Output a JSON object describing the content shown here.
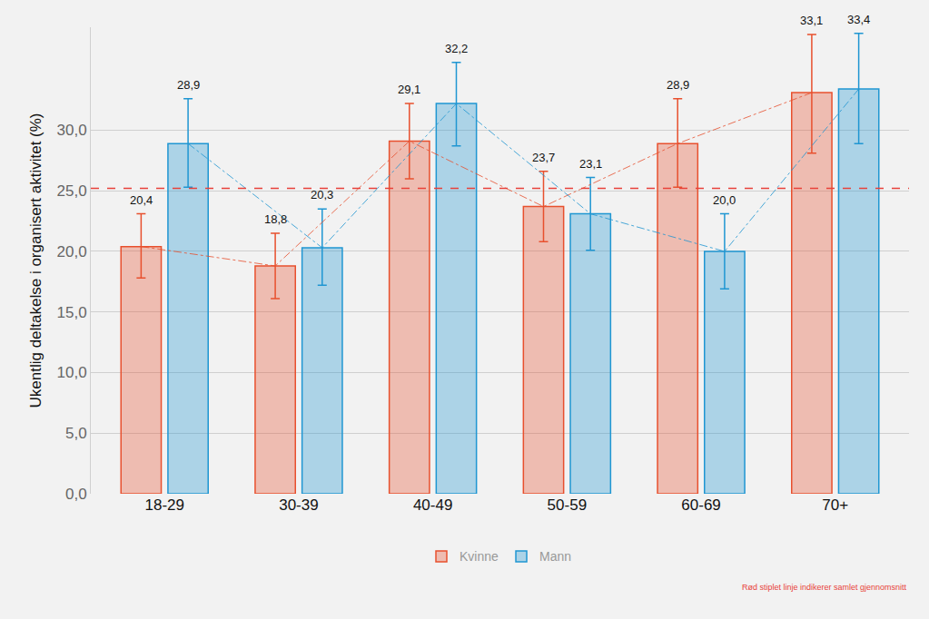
{
  "chart_data": {
    "type": "bar",
    "y_label": "Ukentlig deltakelse i organisert aktivitet (%)",
    "categories": [
      "18-29",
      "30-39",
      "40-49",
      "50-59",
      "60-69",
      "70+"
    ],
    "series": [
      {
        "name": "Kvinne",
        "color": "#e8502e",
        "line_style": "dashdot",
        "values": [
          20.4,
          18.8,
          29.1,
          23.7,
          28.9,
          33.1
        ],
        "value_labels": [
          "20,4",
          "18,8",
          "29,1",
          "23,7",
          "28,9",
          "33,1"
        ],
        "ci_low": [
          17.8,
          16.1,
          26.0,
          20.8,
          25.3,
          28.1
        ],
        "ci_high": [
          23.1,
          21.5,
          32.2,
          26.6,
          32.6,
          37.9
        ]
      },
      {
        "name": "Mann",
        "color": "#1f96d2",
        "line_style": "dashdot",
        "values": [
          28.9,
          20.3,
          32.2,
          23.1,
          20.0,
          33.4
        ],
        "value_labels": [
          "28,9",
          "20,3",
          "32,2",
          "23,1",
          "20,0",
          "33,4"
        ],
        "ci_low": [
          25.3,
          17.2,
          28.7,
          20.1,
          16.9,
          28.9
        ],
        "ci_high": [
          32.6,
          23.5,
          35.6,
          26.1,
          23.1,
          38.0
        ]
      }
    ],
    "ylim": [
      0,
      38.5
    ],
    "yticks": [
      {
        "value": 0,
        "label": "0,0"
      },
      {
        "value": 5,
        "label": "5,0"
      },
      {
        "value": 10,
        "label": "10,0"
      },
      {
        "value": 15,
        "label": "15,0"
      },
      {
        "value": 20,
        "label": "20,0"
      },
      {
        "value": 25,
        "label": "25,0"
      },
      {
        "value": 30,
        "label": "30,0"
      }
    ],
    "grid": true,
    "legend": "bottom",
    "data_labels": true,
    "reference_line": {
      "value": 25.2,
      "color": "#e8413a",
      "line_style": "dash"
    },
    "note": "Rød stiplet linje indikerer samlet gjennomsnitt"
  }
}
